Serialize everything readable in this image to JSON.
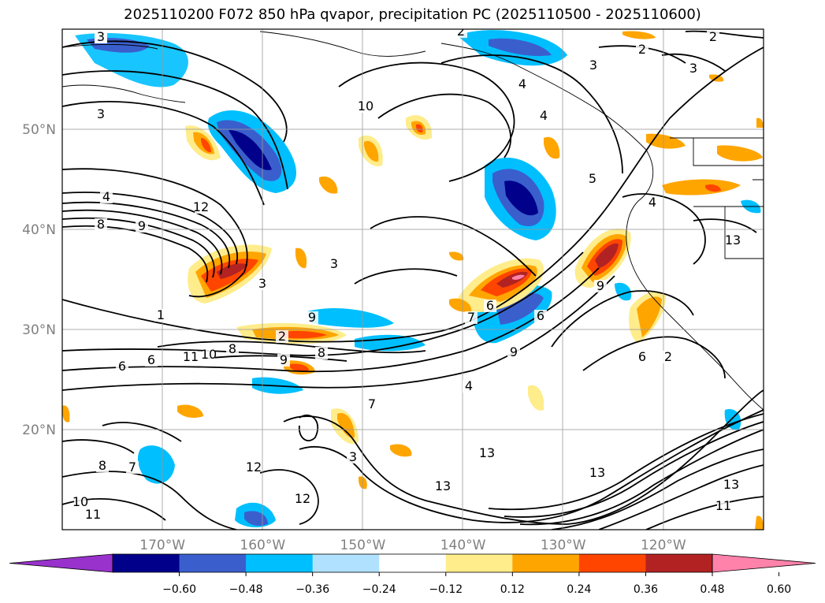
{
  "title": "2025110200 F072 850 hPa qvapor, precipitation PC (2025110500 - 2025110600)",
  "map": {
    "lon_range": [
      -180,
      -110
    ],
    "lat_range": [
      10,
      60
    ],
    "grid": true,
    "lon_ticks": [
      {
        "value": -170,
        "label": "170°W"
      },
      {
        "value": -160,
        "label": "160°W"
      },
      {
        "value": -150,
        "label": "150°W"
      },
      {
        "value": -140,
        "label": "140°W"
      },
      {
        "value": -130,
        "label": "130°W"
      },
      {
        "value": -120,
        "label": "120°W"
      }
    ],
    "lat_ticks": [
      {
        "value": 20,
        "label": "20°N"
      },
      {
        "value": 30,
        "label": "30°N"
      },
      {
        "value": 40,
        "label": "40°N"
      },
      {
        "value": 50,
        "label": "50°N"
      }
    ],
    "contour_labels": [
      "2",
      "2",
      "2",
      "2",
      "3",
      "3",
      "3",
      "4",
      "4",
      "5",
      "4",
      "4",
      "12",
      "8",
      "9",
      "10",
      "3",
      "3",
      "1",
      "9",
      "2",
      "8",
      "6",
      "6",
      "11",
      "10",
      "9",
      "8",
      "6",
      "7",
      "6",
      "9",
      "9",
      "4",
      "7",
      "6",
      "2",
      "3",
      "8",
      "7",
      "10",
      "11",
      "12",
      "12",
      "13",
      "13",
      "13",
      "13",
      "11",
      "13",
      "3"
    ]
  },
  "colorbar": {
    "ticks": [
      "−0.60",
      "−0.48",
      "−0.36",
      "−0.24",
      "−0.12",
      "0.12",
      "0.24",
      "0.36",
      "0.48",
      "0.60"
    ],
    "colors": [
      "#9932CC",
      "#00008B",
      "#3A5FCD",
      "#00BFFF",
      "#B0E2FF",
      "#FFFFFF",
      "#FFEC8B",
      "#FFA500",
      "#FF4500",
      "#B22222",
      "#FF82AB"
    ]
  }
}
